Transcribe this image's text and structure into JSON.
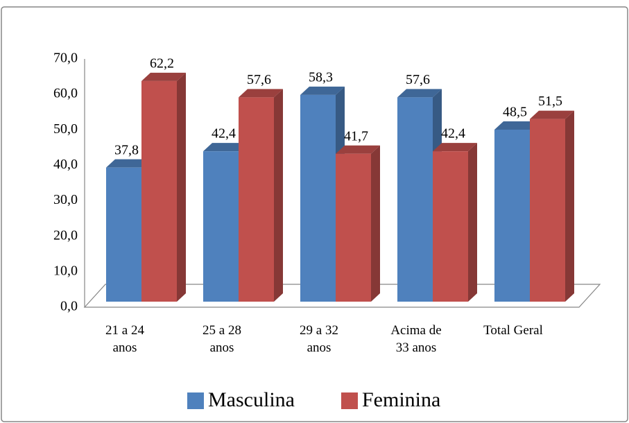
{
  "chart_data": {
    "type": "bar",
    "categories": [
      "21 a 24 anos",
      "25 a 28 anos",
      "29 a 32 anos",
      "Acima de 33 anos",
      "Total Geral"
    ],
    "series": [
      {
        "name": "Masculina",
        "color": "#4f81bd",
        "values": [
          37.8,
          42.4,
          58.3,
          57.6,
          48.5
        ],
        "value_labels": [
          "37,8",
          "42,4",
          "58,3",
          "57,6",
          "48,5"
        ]
      },
      {
        "name": "Feminina",
        "color": "#c0504d",
        "values": [
          62.2,
          57.6,
          41.7,
          42.4,
          51.5
        ],
        "value_labels": [
          "62,2",
          "57,6",
          "41,7",
          "42,4",
          "51,5"
        ]
      }
    ],
    "ylim": [
      0,
      70
    ],
    "yticks": [
      {
        "value": 0,
        "label": "0,0"
      },
      {
        "value": 10,
        "label": "10,0"
      },
      {
        "value": 20,
        "label": "20,0"
      },
      {
        "value": 30,
        "label": "30,0"
      },
      {
        "value": 40,
        "label": "40,0"
      },
      {
        "value": 50,
        "label": "50,0"
      },
      {
        "value": 60,
        "label": "60,0"
      },
      {
        "value": 70,
        "label": "70,0"
      }
    ],
    "legend": "bottom"
  }
}
